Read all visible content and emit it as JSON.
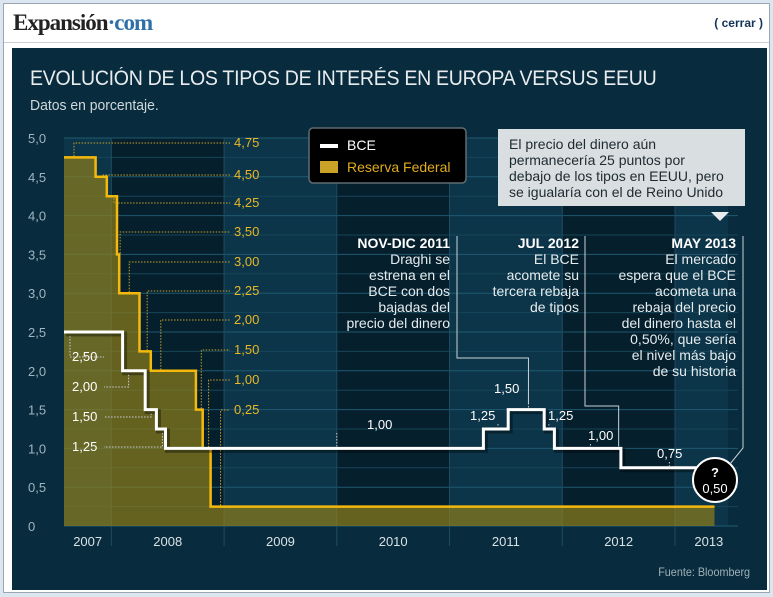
{
  "header": {
    "logo_main": "Expansión",
    "logo_suffix": "com",
    "close_label": "( cerrar )"
  },
  "graphic": {
    "title": "EVOLUCIÓN DE LOS TIPOS DE INTERÉS EN EUROPA VERSUS EEUU",
    "subtitle": "Datos en porcentaje.",
    "source": "Fuente: Bloomberg"
  },
  "colors": {
    "background": "#082b3d",
    "bce": "#ffffff",
    "fed_line": "#f5b90c",
    "fed_fill": "#6b6322",
    "label_fed": "#e8b825",
    "callout_box": "#d9dee0"
  },
  "chart_data": {
    "type": "line",
    "title": "EVOLUCIÓN DE LOS TIPOS DE INTERÉS EN EUROPA VERSUS EEUU",
    "subtitle": "Datos en porcentaje.",
    "xlabel": "",
    "ylabel": "",
    "ylim": [
      0,
      5.0
    ],
    "xlim": [
      2007.58,
      2013.47
    ],
    "yticks": [
      "0",
      "0,5",
      "1,0",
      "1,5",
      "2,0",
      "2,5",
      "3,0",
      "3,5",
      "4,0",
      "4,5",
      "5,0"
    ],
    "ytick_values": [
      0,
      0.5,
      1.0,
      1.5,
      2.0,
      2.5,
      3.0,
      3.5,
      4.0,
      4.5,
      5.0
    ],
    "xticks": [
      "2007",
      "2008",
      "2009",
      "2010",
      "2011",
      "2012",
      "2013"
    ],
    "year_boundaries": [
      2008,
      2009,
      2010,
      2011,
      2012,
      2013
    ],
    "grid": true,
    "legend": {
      "position": "top-center",
      "entries": [
        {
          "name": "BCE",
          "style": "line",
          "color": "#ffffff"
        },
        {
          "name": "Reserva Federal",
          "style": "area",
          "color": "#c9a227"
        }
      ]
    },
    "series": [
      {
        "name": "BCE",
        "step": true,
        "points": [
          [
            2007.58,
            2.5
          ],
          [
            2008.1,
            2.0
          ],
          [
            2008.3,
            1.5
          ],
          [
            2008.4,
            1.25
          ],
          [
            2008.48,
            1.0
          ],
          [
            2011.3,
            1.25
          ],
          [
            2011.52,
            1.5
          ],
          [
            2011.84,
            1.25
          ],
          [
            2011.93,
            1.0
          ],
          [
            2012.52,
            0.75
          ],
          [
            2013.36,
            0.5
          ]
        ],
        "end_x": 2013.36
      },
      {
        "name": "Reserva Federal",
        "step": true,
        "area": true,
        "points": [
          [
            2007.58,
            4.75
          ],
          [
            2007.86,
            4.5
          ],
          [
            2007.96,
            4.25
          ],
          [
            2008.05,
            3.5
          ],
          [
            2008.07,
            3.0
          ],
          [
            2008.25,
            2.25
          ],
          [
            2008.35,
            2.0
          ],
          [
            2008.75,
            1.5
          ],
          [
            2008.81,
            1.0
          ],
          [
            2008.88,
            0.25
          ]
        ],
        "end_x": 2013.35
      }
    ],
    "data_labels": {
      "fed": [
        "4,75",
        "4,50",
        "4,25",
        "3,50",
        "3,00",
        "2,25",
        "2,00",
        "1,50",
        "1,00",
        "0,25"
      ],
      "bce": [
        "2,50",
        "2,00",
        "1,50",
        "1,25",
        "1,00",
        "1,25",
        "1,50",
        "1,25",
        "1,00",
        "0,75"
      ],
      "forecast": {
        "mark": "?",
        "value": "0,50"
      }
    },
    "annotations": [
      {
        "heading": "NOV-DIC 2011",
        "lines": [
          "Draghi se",
          "estrena en el",
          "BCE con dos",
          "bajadas del",
          "precio del dinero"
        ]
      },
      {
        "heading": "JUL 2012",
        "lines": [
          "El BCE",
          "acomete su",
          "tercera rebaja",
          "de tipos"
        ]
      },
      {
        "heading": "MAY 2013",
        "lines": [
          "El mercado",
          "espera que el BCE",
          "acometa una",
          "rebaja del precio",
          "del dinero hasta el",
          "0,50%, que sería",
          "el nivel más bajo",
          "de su historia"
        ]
      }
    ],
    "callout": {
      "lines": [
        "El precio del dinero aún",
        "permanecería 25 puntos por",
        "debajo de los tipos en EEUU, pero",
        "se igualaría con el de Reino Unido"
      ]
    }
  }
}
